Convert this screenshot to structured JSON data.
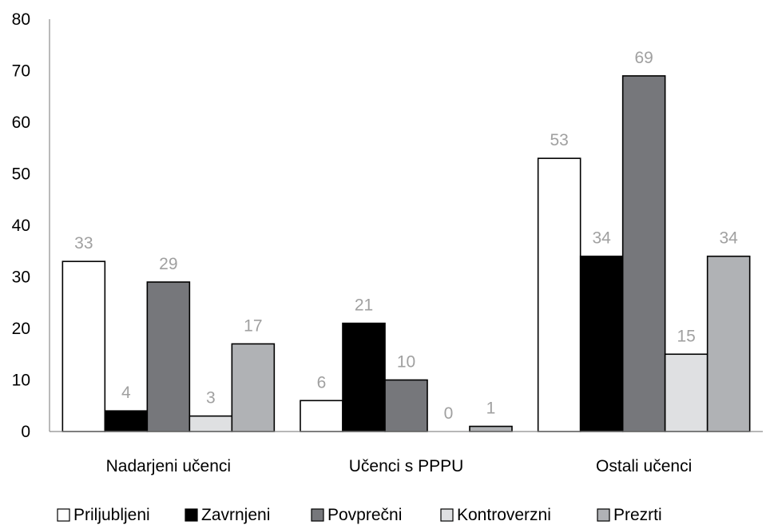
{
  "chart_data": {
    "type": "bar",
    "title": "",
    "xlabel": "",
    "ylabel": "",
    "ylim": [
      0,
      80
    ],
    "yticks": [
      0,
      10,
      20,
      30,
      40,
      50,
      60,
      70,
      80
    ],
    "grid": false,
    "legend_position": "bottom",
    "categories": [
      "Nadarjeni učenci",
      "Učenci s PPPU",
      "Ostali učenci"
    ],
    "series": [
      {
        "name": "Priljubljeni",
        "color": "#ffffff",
        "values": [
          33,
          6,
          53
        ]
      },
      {
        "name": "Zavrnjeni",
        "color": "#000000",
        "values": [
          4,
          21,
          34
        ]
      },
      {
        "name": "Povprečni",
        "color": "#76777b",
        "values": [
          29,
          10,
          69
        ]
      },
      {
        "name": "Kontroverzni",
        "color": "#dfe0e2",
        "values": [
          3,
          0,
          15
        ]
      },
      {
        "name": "Prezrti",
        "color": "#b0b2b5",
        "values": [
          17,
          1,
          34
        ]
      }
    ],
    "data_label_color": "#a0a0a0"
  }
}
